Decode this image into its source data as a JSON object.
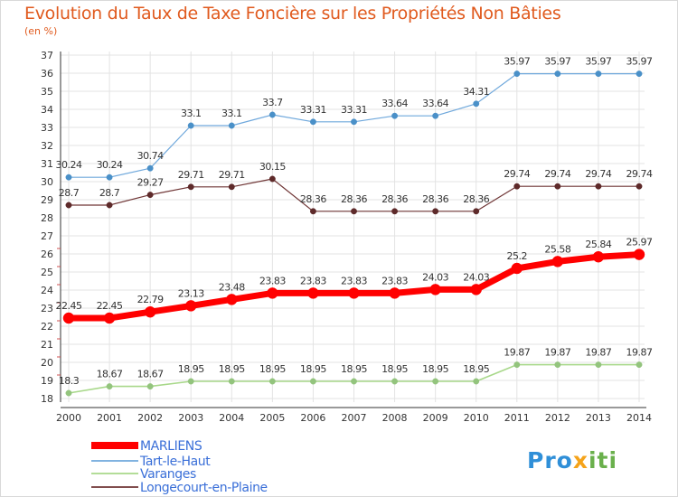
{
  "chart_data": {
    "type": "line",
    "title": "Evolution du Taux de Taxe Foncière sur les Propriétés Non Bâties",
    "subtitle": "(en %)",
    "x": [
      "2000",
      "2001",
      "2002",
      "2003",
      "2004",
      "2005",
      "2006",
      "2007",
      "2008",
      "2009",
      "2010",
      "2011",
      "2012",
      "2013",
      "2014"
    ],
    "ylim": [
      18,
      37
    ],
    "yticks": [
      18,
      19,
      20,
      21,
      22,
      23,
      24,
      25,
      26,
      27,
      28,
      29,
      30,
      31,
      32,
      33,
      34,
      35,
      36,
      37
    ],
    "grid": true,
    "legend_position": "bottom-left",
    "series": [
      {
        "name": "MARLIENS",
        "color": "#ff0000",
        "values": [
          22.45,
          22.45,
          22.79,
          23.13,
          23.48,
          23.83,
          23.83,
          23.83,
          23.83,
          24.03,
          24.03,
          25.2,
          25.58,
          25.84,
          25.97
        ],
        "labels": [
          "22.45",
          "22.45",
          "22.79",
          "23.13",
          "23.48",
          "23.83",
          "23.83",
          "23.83",
          "23.83",
          "24.03",
          "24.03",
          "25.2",
          "25.58",
          "25.84",
          "25.97"
        ]
      },
      {
        "name": "Tart-le-Haut",
        "color": "#6fa8dc",
        "values": [
          30.24,
          30.24,
          30.74,
          33.1,
          33.1,
          33.7,
          33.31,
          33.31,
          33.64,
          33.64,
          34.31,
          35.97,
          35.97,
          35.97,
          35.97
        ],
        "labels": [
          "30.24",
          "30.24",
          "30.74",
          "33.1",
          "33.1",
          "33.7",
          "33.31",
          "33.31",
          "33.64",
          "33.64",
          "34.31",
          "35.97",
          "35.97",
          "35.97",
          "35.97"
        ]
      },
      {
        "name": "Varanges",
        "color": "#93c47d",
        "values": [
          18.3,
          18.67,
          18.67,
          18.95,
          18.95,
          18.95,
          18.95,
          18.95,
          18.95,
          18.95,
          18.95,
          19.87,
          19.87,
          19.87,
          19.87
        ],
        "labels": [
          "18.3",
          "18.67",
          "18.67",
          "18.95",
          "18.95",
          "18.95",
          "18.95",
          "18.95",
          "18.95",
          "18.95",
          "18.95",
          "19.87",
          "19.87",
          "19.87",
          "19.87"
        ]
      },
      {
        "name": "Longecourt-en-Plaine",
        "color": "#7f3f3f",
        "values": [
          28.7,
          28.7,
          29.27,
          29.71,
          29.71,
          30.15,
          28.36,
          28.36,
          28.36,
          28.36,
          28.36,
          29.74,
          29.74,
          29.74,
          29.74
        ],
        "labels": [
          "28.7",
          "28.7",
          "29.27",
          "29.71",
          "29.71",
          "30.15",
          "28.36",
          "28.36",
          "28.36",
          "28.36",
          "28.36",
          "29.74",
          "29.74",
          "29.74",
          "29.74"
        ]
      }
    ]
  },
  "logo": {
    "text": "Proxiti"
  }
}
